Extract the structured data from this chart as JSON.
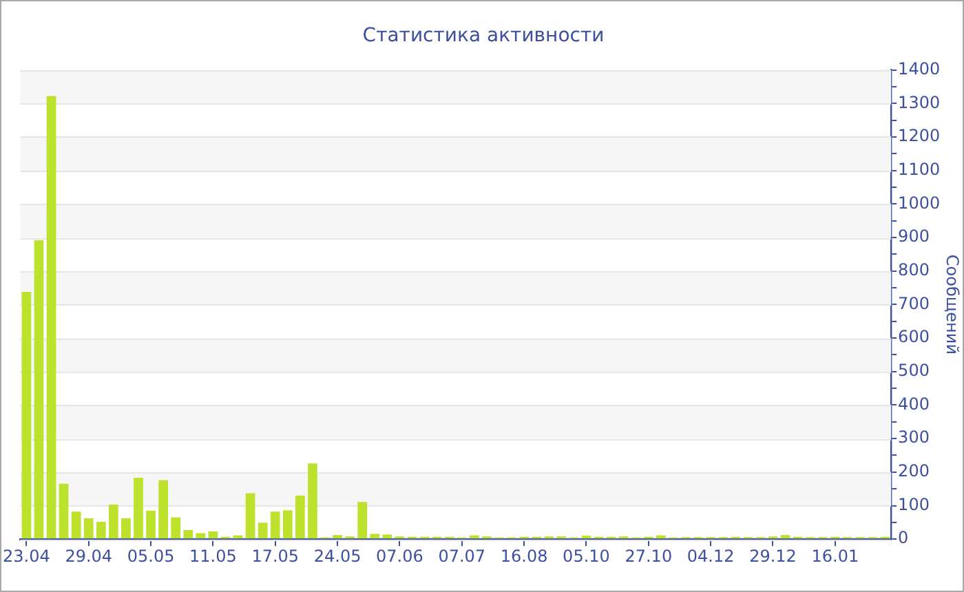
{
  "chart_data": {
    "type": "bar",
    "title": "Статистика активности",
    "ylabel": "Сообщений",
    "categories": [
      "23.04",
      null,
      null,
      null,
      null,
      "29.04",
      null,
      null,
      null,
      null,
      "05.05",
      null,
      null,
      null,
      null,
      "11.05",
      null,
      null,
      null,
      null,
      "17.05",
      null,
      null,
      null,
      null,
      "24.05",
      null,
      null,
      null,
      null,
      "07.06",
      null,
      null,
      null,
      null,
      "07.07",
      null,
      null,
      null,
      null,
      "16.08",
      null,
      null,
      null,
      null,
      "05.10",
      null,
      null,
      null,
      null,
      "27.10",
      null,
      null,
      null,
      null,
      "04.12",
      null,
      null,
      null,
      null,
      "29.12",
      null,
      null,
      null,
      null,
      "16.01",
      null,
      null,
      null,
      null
    ],
    "values": [
      738,
      892,
      1322,
      165,
      82,
      62,
      52,
      103,
      62,
      183,
      85,
      176,
      65,
      27,
      18,
      23,
      7,
      11,
      137,
      49,
      82,
      86,
      130,
      226,
      5,
      12,
      8,
      111,
      16,
      14,
      8,
      7,
      7,
      7,
      7,
      5,
      11,
      8,
      5,
      5,
      7,
      7,
      8,
      8,
      5,
      10,
      7,
      7,
      8,
      5,
      7,
      11,
      5,
      6,
      6,
      6,
      6,
      7,
      6,
      6,
      8,
      12,
      7,
      6,
      6,
      7,
      6,
      6,
      6,
      7
    ],
    "color": "#bde22e",
    "ylim": [
      0,
      1400
    ],
    "yticks": [
      0,
      {
        "value": 50,
        "label": null
      },
      100,
      {
        "value": 150,
        "label": null
      },
      200,
      {
        "value": 250,
        "label": null
      },
      300,
      {
        "value": 350,
        "label": null
      },
      400,
      {
        "value": 450,
        "label": null
      },
      500,
      {
        "value": 550,
        "label": null
      },
      600,
      {
        "value": 650,
        "label": null
      },
      700,
      {
        "value": 750,
        "label": null
      },
      800,
      {
        "value": 850,
        "label": null
      },
      900,
      {
        "value": 950,
        "label": null
      },
      1000,
      {
        "value": 1050,
        "label": null
      },
      1100,
      {
        "value": 1150,
        "label": null
      },
      1200,
      {
        "value": 1250,
        "label": null
      },
      1300,
      {
        "value": 1350,
        "label": null
      },
      1400
    ],
    "grid": "y"
  }
}
